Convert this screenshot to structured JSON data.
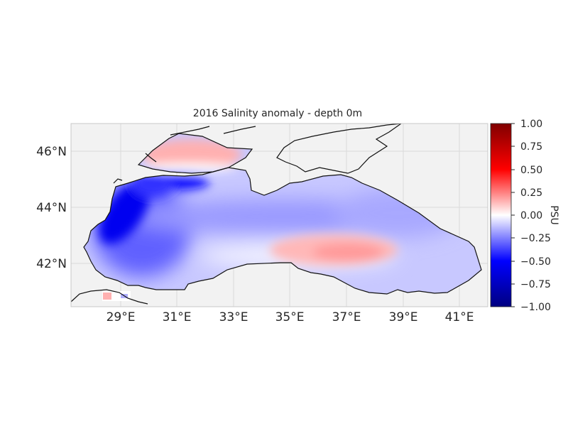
{
  "figure": {
    "title": "2016 Salinity anomaly - depth 0m",
    "x_ticks": [
      "29°E",
      "31°E",
      "33°E",
      "35°E",
      "37°E",
      "39°E",
      "41°E"
    ],
    "y_ticks": [
      "46°N",
      "44°N",
      "42°N"
    ],
    "colorbar": {
      "label": "PSU",
      "ticks": [
        "1.00",
        "0.75",
        "0.50",
        "0.25",
        "0.00",
        "−0.25",
        "−0.50",
        "−0.75",
        "−1.00"
      ],
      "colormap": "seismic (blue–white–red)",
      "range": [
        -1.0,
        1.0
      ]
    },
    "colors": {
      "negative": "#0000ff",
      "neutral": "#ffffff",
      "positive": "#ff0000",
      "land": "#ffffff",
      "background": "#f2f2f2",
      "coastline": "#000000"
    }
  }
}
